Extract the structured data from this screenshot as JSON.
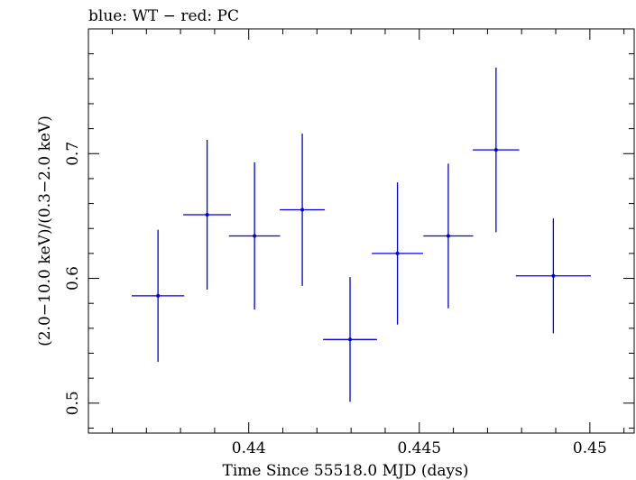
{
  "chart_data": {
    "type": "scatter",
    "title": "blue: WT − red: PC",
    "xlabel": "Time Since 55518.0 MJD (days)",
    "ylabel": "(2.0−10.0 keV)/(0.3−2.0 keV)",
    "xlim": [
      0.4353,
      0.4513
    ],
    "ylim": [
      0.476,
      0.8
    ],
    "x_ticks": [
      {
        "value": 0.44,
        "label": "0.44"
      },
      {
        "value": 0.445,
        "label": "0.445"
      },
      {
        "value": 0.45,
        "label": "0.45"
      }
    ],
    "y_ticks": [
      {
        "value": 0.5,
        "label": "0.5"
      },
      {
        "value": 0.6,
        "label": "0.6"
      },
      {
        "value": 0.7,
        "label": "0.7"
      }
    ],
    "series": [
      {
        "name": "WT",
        "color": "#0000dd",
        "points": [
          {
            "x": 0.43734,
            "xerr": 0.00077,
            "y": 0.586,
            "yerr": 0.053
          },
          {
            "x": 0.43878,
            "xerr": 0.0007,
            "y": 0.651,
            "yerr": 0.06
          },
          {
            "x": 0.44017,
            "xerr": 0.00075,
            "y": 0.634,
            "yerr": 0.059
          },
          {
            "x": 0.44157,
            "xerr": 0.00066,
            "y": 0.655,
            "yerr": 0.061
          },
          {
            "x": 0.44297,
            "xerr": 0.00079,
            "y": 0.551,
            "yerr": 0.05
          },
          {
            "x": 0.44436,
            "xerr": 0.00075,
            "y": 0.62,
            "yerr": 0.057
          },
          {
            "x": 0.44585,
            "xerr": 0.00073,
            "y": 0.634,
            "yerr": 0.058
          },
          {
            "x": 0.44725,
            "xerr": 0.00068,
            "y": 0.703,
            "yerr": 0.066
          },
          {
            "x": 0.44893,
            "xerr": 0.0011,
            "y": 0.602,
            "yerr": 0.046
          }
        ]
      }
    ]
  }
}
